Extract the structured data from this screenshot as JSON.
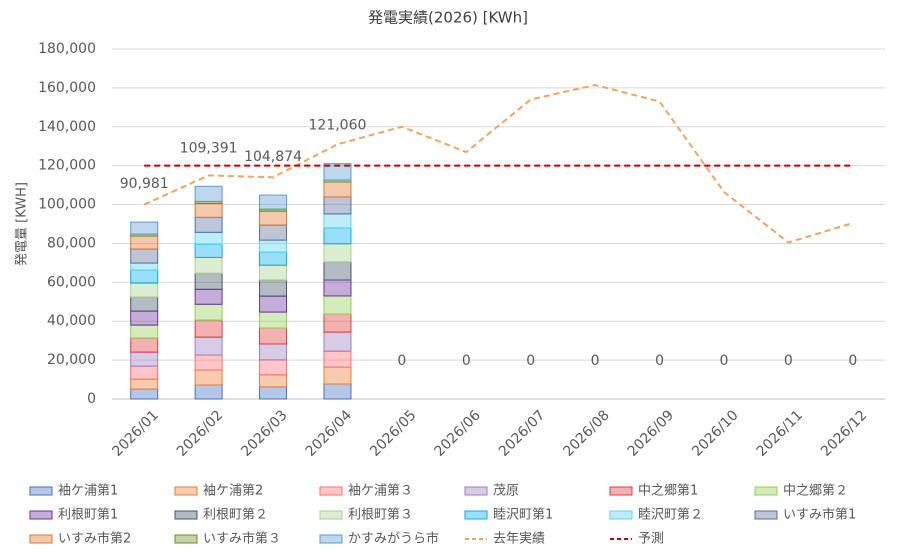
{
  "chart_data": {
    "type": "stacked-bar",
    "title": "発電実績(2026) [KWh]",
    "y_label": "発電量 [KWH]",
    "categories": [
      "2026/01",
      "2026/02",
      "2026/03",
      "2026/04",
      "2026/05",
      "2026/06",
      "2026/07",
      "2026/08",
      "2026/09",
      "2026/10",
      "2026/11",
      "2026/12"
    ],
    "ylim": [
      0,
      180000
    ],
    "yticks": [
      0,
      {
        "value": 20000,
        "label": "20,000"
      },
      {
        "value": 40000,
        "label": "40,000"
      },
      {
        "value": 60000,
        "label": "60,000"
      },
      {
        "value": 80000,
        "label": "80,000"
      },
      {
        "value": 100000,
        "label": "100,000"
      },
      {
        "value": 120000,
        "label": "120,000"
      },
      {
        "value": 140000,
        "label": "140,000"
      },
      {
        "value": 160000,
        "label": "160,000"
      },
      {
        "value": 180000,
        "label": "180,000"
      }
    ],
    "grid": true,
    "series": [
      {
        "name": "袖ケ浦第1",
        "color": "#4472c4",
        "values": [
          5100,
          7200,
          6200,
          7700,
          0,
          0,
          0,
          0,
          0,
          0,
          0,
          0
        ]
      },
      {
        "name": "袖ケ浦第2",
        "color": "#ed7d31",
        "values": [
          5100,
          7700,
          6200,
          8700,
          0,
          0,
          0,
          0,
          0,
          0,
          0,
          0
        ]
      },
      {
        "name": "袖ケ浦第３",
        "color": "#ff6f73",
        "values": [
          6700,
          7700,
          7700,
          8200,
          0,
          0,
          0,
          0,
          0,
          0,
          0,
          0
        ]
      },
      {
        "name": "茂原",
        "color": "#9e7cc1",
        "values": [
          7200,
          9200,
          8200,
          9800,
          0,
          0,
          0,
          0,
          0,
          0,
          0,
          0
        ]
      },
      {
        "name": "中之郷第1",
        "color": "#e03c3c",
        "values": [
          7200,
          8700,
          8200,
          9300,
          0,
          0,
          0,
          0,
          0,
          0,
          0,
          0
        ]
      },
      {
        "name": "中之郷第２",
        "color": "#92d050",
        "values": [
          6700,
          8200,
          8200,
          9300,
          0,
          0,
          0,
          0,
          0,
          0,
          0,
          0
        ]
      },
      {
        "name": "利根町第1",
        "color": "#7030a0",
        "values": [
          7200,
          7700,
          8200,
          8200,
          0,
          0,
          0,
          0,
          0,
          0,
          0,
          0
        ]
      },
      {
        "name": "利根町第２",
        "color": "#44546a",
        "values": [
          7200,
          8200,
          8200,
          9300,
          0,
          0,
          0,
          0,
          0,
          0,
          0,
          0
        ]
      },
      {
        "name": "利根町第３",
        "color": "#a9d18e",
        "values": [
          7200,
          8200,
          7700,
          9300,
          0,
          0,
          0,
          0,
          0,
          0,
          0,
          0
        ]
      },
      {
        "name": "睦沢町第1",
        "color": "#00b0f0",
        "values": [
          6700,
          6700,
          6700,
          8200,
          0,
          0,
          0,
          0,
          0,
          0,
          0,
          0
        ]
      },
      {
        "name": "睦沢町第２",
        "color": "#5bd3f0",
        "values": [
          3600,
          6200,
          6200,
          7200,
          0,
          0,
          0,
          0,
          0,
          0,
          0,
          0
        ]
      },
      {
        "name": "いすみ市第1",
        "color": "#5a6e9c",
        "values": [
          7200,
          7700,
          7700,
          8700,
          0,
          0,
          0,
          0,
          0,
          0,
          0,
          0
        ]
      },
      {
        "name": "いすみ市第2",
        "color": "#e0762c",
        "values": [
          6700,
          7200,
          7200,
          7700,
          0,
          0,
          0,
          0,
          0,
          0,
          0,
          0
        ]
      },
      {
        "name": "いすみ市第３",
        "color": "#6b8e23",
        "values": [
          1000,
          1000,
          1000,
          1000,
          0,
          0,
          0,
          0,
          0,
          0,
          0,
          0
        ]
      },
      {
        "name": "かすみがうら市",
        "color": "#5b9bd5",
        "values": [
          6181,
          7791,
          7274,
          8460,
          0,
          0,
          0,
          0,
          0,
          0,
          0,
          0
        ]
      }
    ],
    "totals": {
      "values": [
        90981,
        109391,
        104874,
        121060,
        0,
        0,
        0,
        0,
        0,
        0,
        0,
        0
      ],
      "value_labels": [
        "90,981",
        "109,391",
        "104,874",
        "121,060",
        "0",
        "0",
        "0",
        "0",
        "0",
        "0",
        "0",
        "0"
      ]
    },
    "lines": [
      {
        "name": "去年実績",
        "color": "#f4a460",
        "values": [
          100000,
          115000,
          114000,
          131000,
          140000,
          127000,
          154000,
          161500,
          153000,
          106500,
          80500,
          90500
        ]
      },
      {
        "name": "予測",
        "color": "#c00000",
        "values": [
          120000,
          120000,
          120000,
          120000,
          120000,
          120000,
          120000,
          120000,
          120000,
          120000,
          120000,
          120000
        ]
      }
    ]
  }
}
